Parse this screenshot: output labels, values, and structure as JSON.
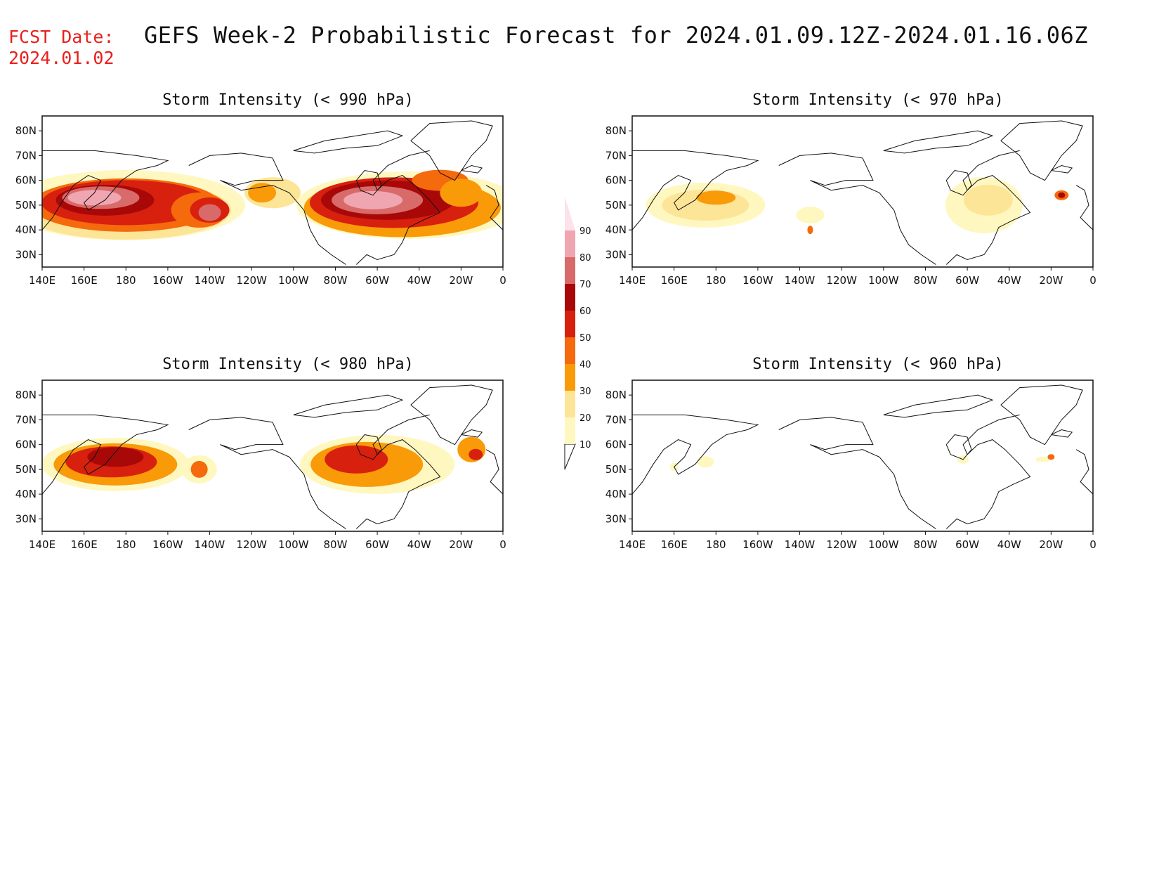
{
  "header": {
    "fcst_label": "FCST Date:",
    "fcst_date": "2024.01.02",
    "title": "GEFS Week-2 Probabilistic Forecast for 2024.01.09.12Z-2024.01.16.06Z"
  },
  "axes": {
    "lon_labels": [
      "140E",
      "160E",
      "180",
      "160W",
      "140W",
      "120W",
      "100W",
      "80W",
      "60W",
      "40W",
      "20W",
      "0"
    ],
    "lat_labels": [
      "80N",
      "70N",
      "60N",
      "50N",
      "40N",
      "30N"
    ]
  },
  "panels": [
    {
      "id": "p990",
      "title": "Storm Intensity (< 990 hPa)",
      "intensity": "high"
    },
    {
      "id": "p970",
      "title": "Storm Intensity (< 970 hPa)",
      "intensity": "low"
    },
    {
      "id": "p980",
      "title": "Storm Intensity (< 980 hPa)",
      "intensity": "medium"
    },
    {
      "id": "p960",
      "title": "Storm Intensity (< 960 hPa)",
      "intensity": "minimal"
    }
  ],
  "colorbar": {
    "levels": [
      "10",
      "20",
      "30",
      "40",
      "50",
      "60",
      "70",
      "80",
      "90"
    ],
    "colors": [
      "#fff7c0",
      "#fde597",
      "#f99a08",
      "#f46a0c",
      "#d8200e",
      "#a80808",
      "#d86a6a",
      "#f0a6b0",
      "#fde2ea"
    ]
  }
}
